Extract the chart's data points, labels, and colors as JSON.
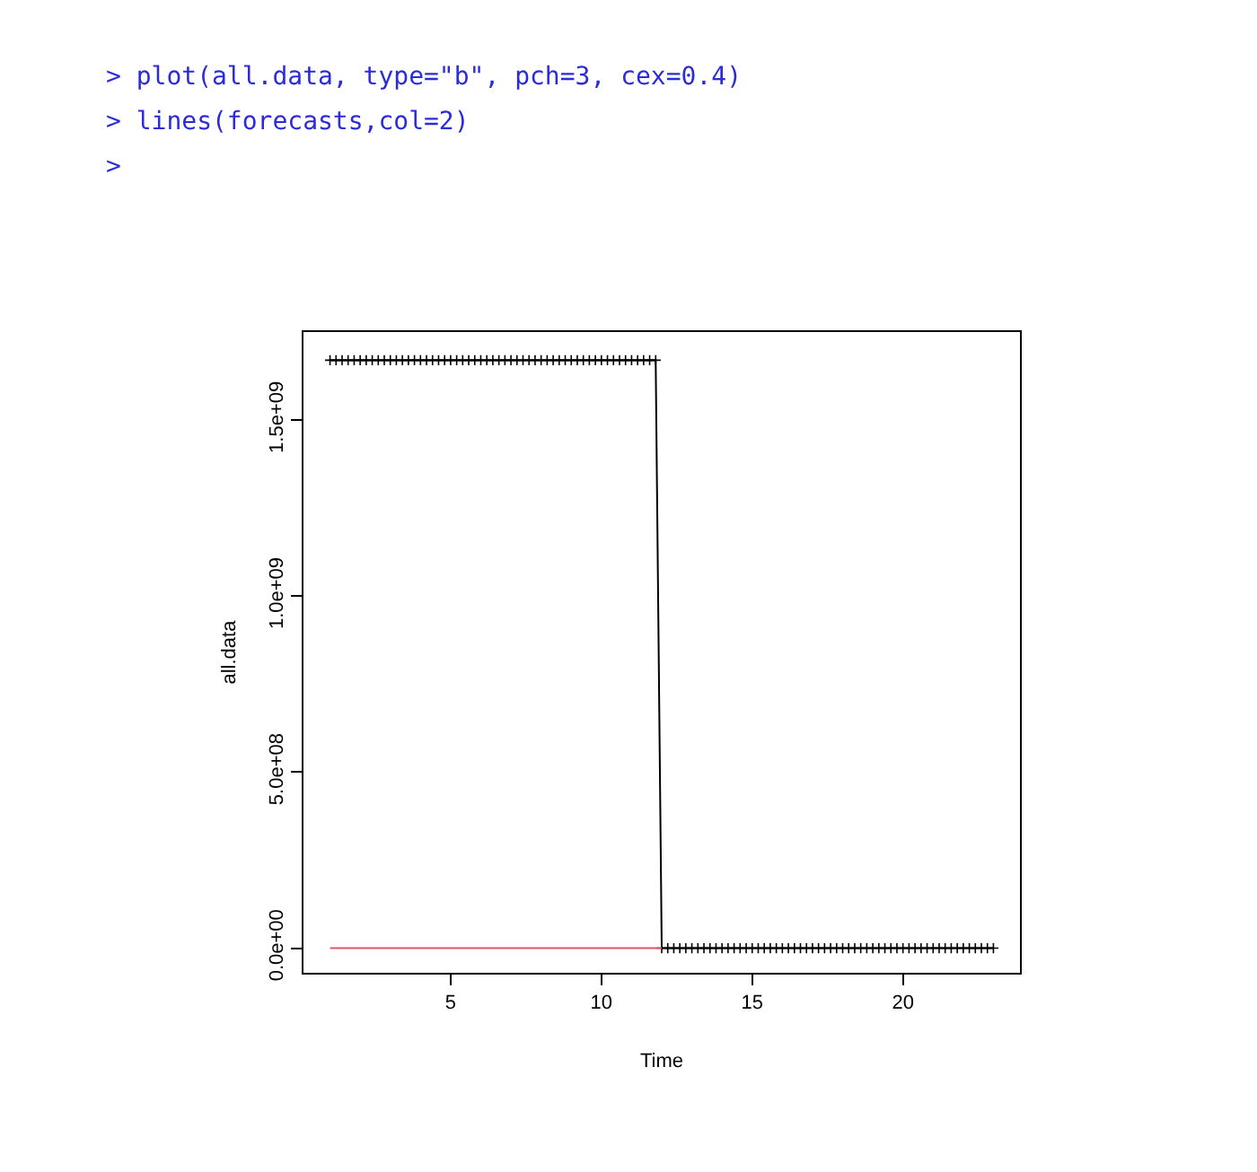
{
  "chart_data": {
    "type": "line",
    "xlabel": "Time",
    "ylabel": "all.data",
    "annotations": [
      "> plot(all.data, type=\"b\", pch=3, cex=0.4)",
      "> lines(forecasts,col=2)",
      ">"
    ],
    "xlim": [
      0.12,
      23.88
    ],
    "xticks": [
      5,
      10,
      15,
      20
    ],
    "ylim": [
      -70000000,
      1750000000
    ],
    "yticks": [
      {
        "value": 0,
        "label": "0.0e+00"
      },
      {
        "value": 500000000,
        "label": "5.0e+08"
      },
      {
        "value": 1000000000,
        "label": "1.0e+09"
      },
      {
        "value": 1500000000,
        "label": "1.5e+09"
      }
    ],
    "series": [
      {
        "color": "#000000",
        "marker": "cross",
        "x": [
          1,
          1.2,
          1.4,
          1.6,
          1.8,
          2,
          2.2,
          2.4,
          2.6,
          2.8,
          3,
          3.2,
          3.4,
          3.6,
          3.8,
          4,
          4.2,
          4.4,
          4.6,
          4.8,
          5,
          5.2,
          5.4,
          5.6,
          5.8,
          6,
          6.2,
          6.4,
          6.6,
          6.8,
          7,
          7.2,
          7.4,
          7.6,
          7.8,
          8,
          8.2,
          8.4,
          8.6,
          8.8,
          9,
          9.2,
          9.4,
          9.6,
          9.8,
          10,
          10.2,
          10.4,
          10.6,
          10.8,
          11,
          11.2,
          11.4,
          11.6,
          11.8,
          12,
          12.2,
          12.4,
          12.6,
          12.8,
          13,
          13.2,
          13.4,
          13.6,
          13.8,
          14,
          14.2,
          14.4,
          14.6,
          14.8,
          15,
          15.2,
          15.4,
          15.6,
          15.8,
          16,
          16.2,
          16.4,
          16.6,
          16.8,
          17,
          17.2,
          17.4,
          17.6,
          17.8,
          18,
          18.2,
          18.4,
          18.6,
          18.8,
          19,
          19.2,
          19.4,
          19.6,
          19.8,
          20,
          20.2,
          20.4,
          20.6,
          20.8,
          21,
          21.2,
          21.4,
          21.6,
          21.8,
          22,
          22.2,
          22.4,
          22.6,
          22.8,
          23
        ],
        "values": [
          1670000000.0,
          1670000000.0,
          1670000000.0,
          1670000000.0,
          1670000000.0,
          1670000000.0,
          1670000000.0,
          1670000000.0,
          1670000000.0,
          1670000000.0,
          1670000000.0,
          1670000000.0,
          1670000000.0,
          1670000000.0,
          1670000000.0,
          1670000000.0,
          1670000000.0,
          1670000000.0,
          1670000000.0,
          1670000000.0,
          1670000000.0,
          1670000000.0,
          1670000000.0,
          1670000000.0,
          1670000000.0,
          1670000000.0,
          1670000000.0,
          1670000000.0,
          1670000000.0,
          1670000000.0,
          1670000000.0,
          1670000000.0,
          1670000000.0,
          1670000000.0,
          1670000000.0,
          1670000000.0,
          1670000000.0,
          1670000000.0,
          1670000000.0,
          1670000000.0,
          1670000000.0,
          1670000000.0,
          1670000000.0,
          1670000000.0,
          1670000000.0,
          1670000000.0,
          1670000000.0,
          1670000000.0,
          1670000000.0,
          1670000000.0,
          1670000000.0,
          1670000000.0,
          1670000000.0,
          1670000000.0,
          1670000000.0,
          0,
          0,
          0,
          0,
          0,
          0,
          0,
          0,
          0,
          0,
          0,
          0,
          0,
          0,
          0,
          0,
          0,
          0,
          0,
          0,
          0,
          0,
          0,
          0,
          0,
          0,
          0,
          0,
          0,
          0,
          0,
          0,
          0,
          0,
          0,
          0,
          0,
          0,
          0,
          0,
          0,
          0,
          0,
          0,
          0,
          0,
          0,
          0,
          0,
          0,
          0,
          0,
          0,
          0,
          0,
          0
        ]
      },
      {
        "color": "#df536b",
        "marker": "none",
        "x": [
          1,
          12
        ],
        "values": [
          0,
          0
        ]
      }
    ]
  }
}
